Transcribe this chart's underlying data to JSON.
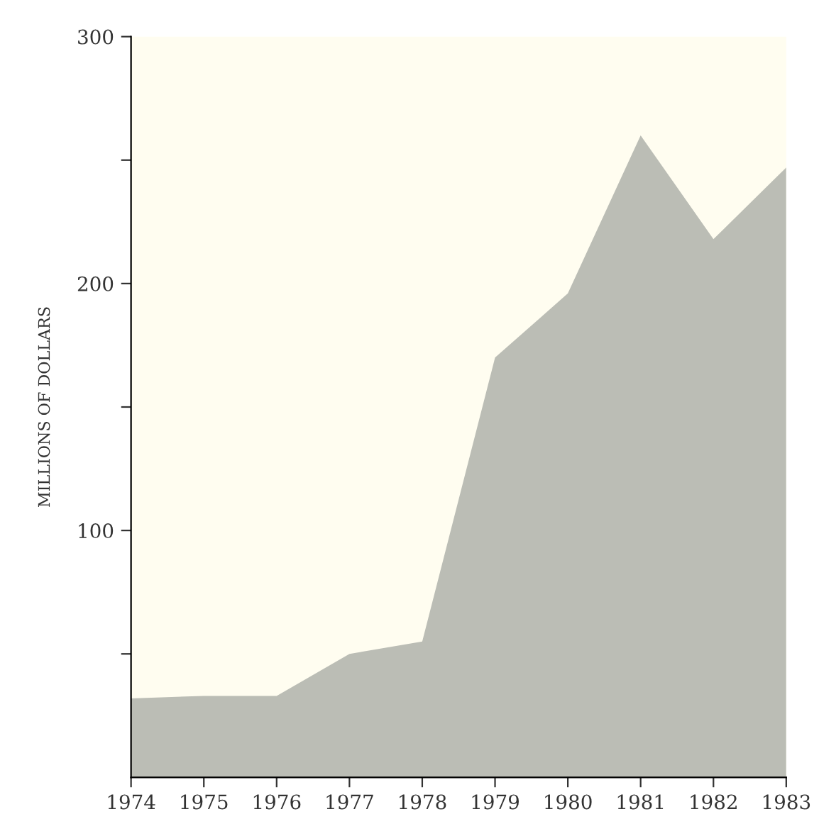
{
  "chart_data": {
    "type": "area",
    "ylabel": "MILLIONS OF DOLLARS",
    "x": [
      1974,
      1975,
      1976,
      1977,
      1978,
      1979,
      1980,
      1981,
      1982,
      1983
    ],
    "series": [
      {
        "color": "#bbbdb5",
        "values": [
          32,
          33,
          33,
          50,
          55,
          170,
          196,
          260,
          218,
          247
        ]
      }
    ],
    "xlim": [
      1974,
      1983
    ],
    "xticks": [
      1974,
      1975,
      1976,
      1977,
      1978,
      1979,
      1980,
      1981,
      1982,
      1983
    ],
    "ylim": [
      0,
      300
    ],
    "yticks": [
      {
        "value": 50,
        "label": null
      },
      100,
      {
        "value": 150,
        "label": null
      },
      200,
      {
        "value": 250,
        "label": null
      },
      300
    ],
    "grid": false,
    "legend": false
  }
}
